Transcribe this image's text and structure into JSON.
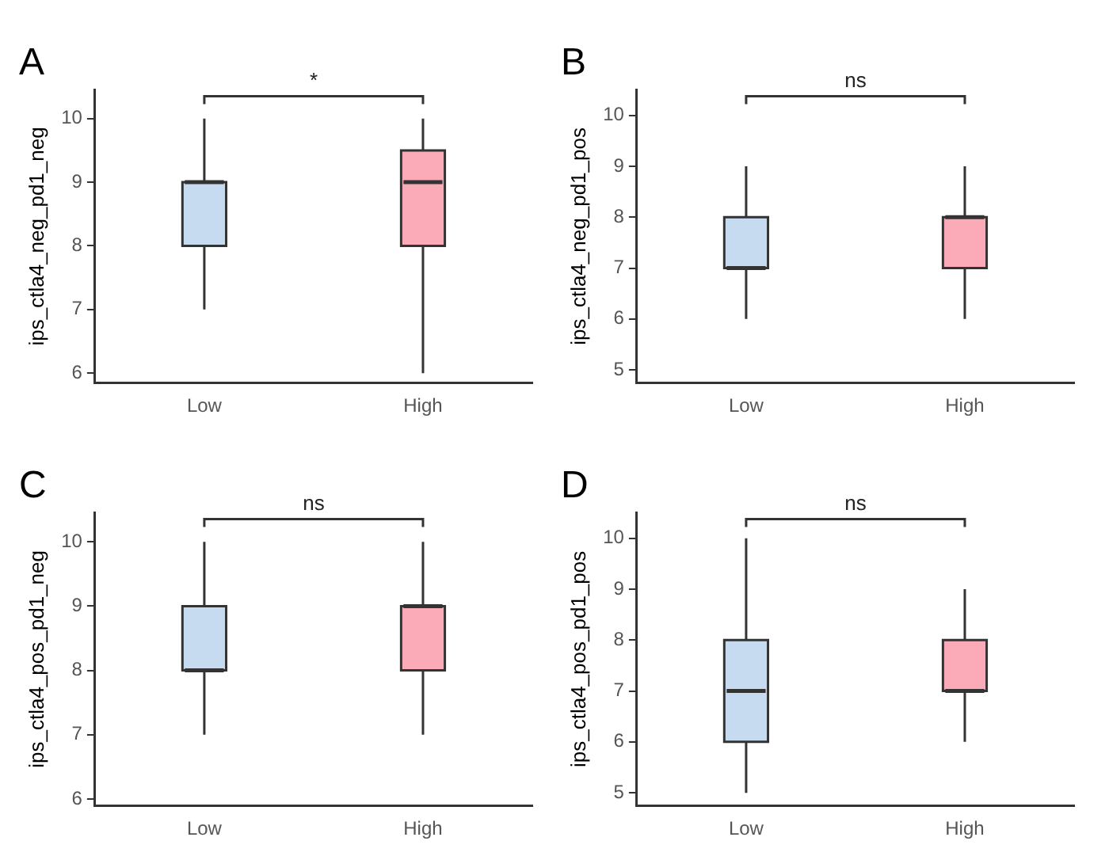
{
  "chart_data": [
    {
      "type": "box",
      "title": "A",
      "categories": [
        "Low",
        "High"
      ],
      "ylabel": "ips_ctla4_neg_pd1_neg",
      "colors": [
        "#c6daf0",
        "#fbabb8"
      ],
      "boxes": [
        {
          "low": 7,
          "q1": 8,
          "median": 9,
          "q3": 9,
          "high": 10
        },
        {
          "low": 6,
          "q1": 8,
          "median": 9,
          "q3": 9.5,
          "high": 10
        }
      ],
      "ylim": [
        5.85,
        10.45
      ],
      "yticks": [
        6,
        7,
        8,
        9,
        10
      ],
      "annotations": [
        "*"
      ],
      "grid": false
    },
    {
      "type": "box",
      "title": "B",
      "categories": [
        "Low",
        "High"
      ],
      "ylabel": "ips_ctla4_neg_pd1_pos",
      "colors": [
        "#c6daf0",
        "#fbabb8"
      ],
      "boxes": [
        {
          "low": 6,
          "q1": 7,
          "median": 7,
          "q3": 8,
          "high": 9
        },
        {
          "low": 6,
          "q1": 7,
          "median": 8,
          "q3": 8,
          "high": 9
        }
      ],
      "ylim": [
        4.75,
        10.5
      ],
      "yticks": [
        5,
        6,
        7,
        8,
        9,
        10
      ],
      "annotations": [
        "ns"
      ],
      "grid": false
    },
    {
      "type": "box",
      "title": "C",
      "categories": [
        "Low",
        "High"
      ],
      "ylabel": "ips_ctla4_pos_pd1_neg",
      "colors": [
        "#c6daf0",
        "#fbabb8"
      ],
      "boxes": [
        {
          "low": 7,
          "q1": 8,
          "median": 8,
          "q3": 9,
          "high": 10
        },
        {
          "low": 7,
          "q1": 8,
          "median": 9,
          "q3": 9,
          "high": 10
        }
      ],
      "ylim": [
        5.9,
        10.45
      ],
      "yticks": [
        6,
        7,
        8,
        9,
        10
      ],
      "annotations": [
        "ns"
      ],
      "grid": false
    },
    {
      "type": "box",
      "title": "D",
      "categories": [
        "Low",
        "High"
      ],
      "ylabel": "ips_ctla4_pos_pd1_pos",
      "colors": [
        "#c6daf0",
        "#fbabb8"
      ],
      "boxes": [
        {
          "low": 5,
          "q1": 6,
          "median": 7,
          "q3": 8,
          "high": 10
        },
        {
          "low": 6,
          "q1": 7,
          "median": 7,
          "q3": 8,
          "high": 9
        }
      ],
      "ylim": [
        4.75,
        10.5
      ],
      "yticks": [
        5,
        6,
        7,
        8,
        9,
        10
      ],
      "annotations": [
        "ns"
      ],
      "grid": false
    }
  ]
}
